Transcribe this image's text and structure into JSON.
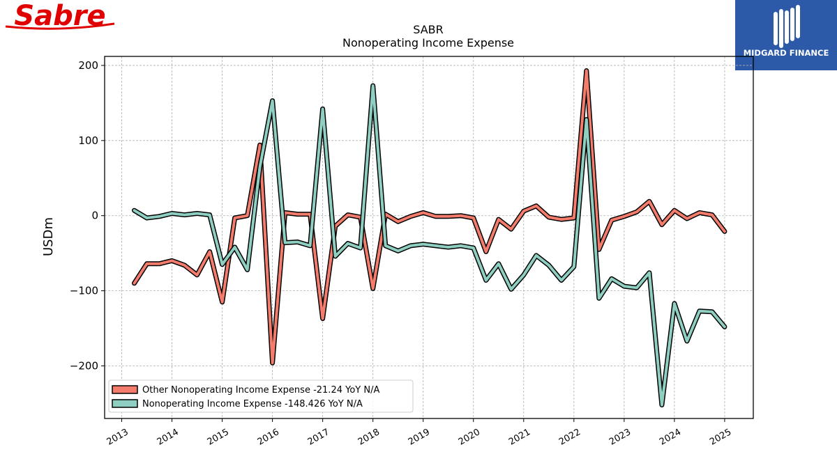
{
  "logos": {
    "left_text": "Sabre",
    "right_text": "MIDGARD FINANCE",
    "left_color": "#e00000",
    "right_bg": "#2c5aa8"
  },
  "chart_data": {
    "type": "line",
    "title": "SABR",
    "subtitle": "Nonoperating Income Expense",
    "ylabel": "USDm",
    "xlabel": "",
    "ylim": [
      -270,
      212
    ],
    "xlim": [
      2012.66,
      2025.57
    ],
    "yticks": [
      200,
      100,
      0,
      -100,
      -200
    ],
    "ytick_labels": [
      "200",
      "100",
      "0",
      "−100",
      "−200"
    ],
    "xticks": [
      2013,
      2014,
      2015,
      2016,
      2017,
      2018,
      2019,
      2020,
      2021,
      2022,
      2023,
      2024,
      2025
    ],
    "xtick_labels": [
      "2013",
      "2014",
      "2015",
      "2016",
      "2017",
      "2018",
      "2019",
      "2020",
      "2021",
      "2022",
      "2023",
      "2024",
      "2025"
    ],
    "grid": true,
    "legend_position": "lower-left",
    "x": [
      2013.25,
      2013.5,
      2013.75,
      2014.0,
      2014.25,
      2014.5,
      2014.75,
      2015.0,
      2015.25,
      2015.5,
      2015.75,
      2016.0,
      2016.25,
      2016.5,
      2016.75,
      2017.0,
      2017.25,
      2017.5,
      2017.75,
      2018.0,
      2018.25,
      2018.5,
      2018.75,
      2019.0,
      2019.25,
      2019.5,
      2019.75,
      2020.0,
      2020.25,
      2020.5,
      2020.75,
      2021.0,
      2021.25,
      2021.5,
      2021.75,
      2022.0,
      2022.25,
      2022.5,
      2022.75,
      2023.0,
      2023.25,
      2023.5,
      2023.75,
      2024.0,
      2024.25,
      2024.5,
      2024.75,
      2025.0
    ],
    "series": [
      {
        "name": "Other Nonoperating Income Expense",
        "legend_label": "Other Nonoperating Income Expense  -21.24 YoY N/A",
        "color": "#f47c6c",
        "values": [
          -90,
          -64,
          -64,
          -60,
          -66,
          -79,
          -48,
          -115,
          -3,
          0,
          94,
          -196,
          4,
          2,
          2,
          -137,
          -14,
          1,
          -2,
          -97,
          2,
          -8,
          -1,
          4,
          -1,
          -1,
          0,
          -3,
          -48,
          -5,
          -18,
          6,
          13,
          -2,
          -5,
          -3,
          193,
          -45,
          -6,
          -1,
          5,
          19,
          -12,
          7,
          -4,
          4,
          1,
          -21
        ]
      },
      {
        "name": "Nonoperating Income Expense",
        "legend_label": "Nonoperating Income Expense  -148.426 YoY N/A",
        "color": "#8ecfc2",
        "values": [
          7,
          -3,
          -1,
          3,
          1,
          3,
          1,
          -65,
          -42,
          -72,
          65,
          153,
          -36,
          -35,
          -40,
          142,
          -54,
          -37,
          -43,
          173,
          -40,
          -47,
          -40,
          -38,
          -40,
          -42,
          -40,
          -43,
          -86,
          -64,
          -98,
          -79,
          -53,
          -66,
          -86,
          -68,
          128,
          -110,
          -84,
          -94,
          -96,
          -76,
          -252,
          -117,
          -167,
          -127,
          -128,
          -148
        ]
      }
    ]
  }
}
